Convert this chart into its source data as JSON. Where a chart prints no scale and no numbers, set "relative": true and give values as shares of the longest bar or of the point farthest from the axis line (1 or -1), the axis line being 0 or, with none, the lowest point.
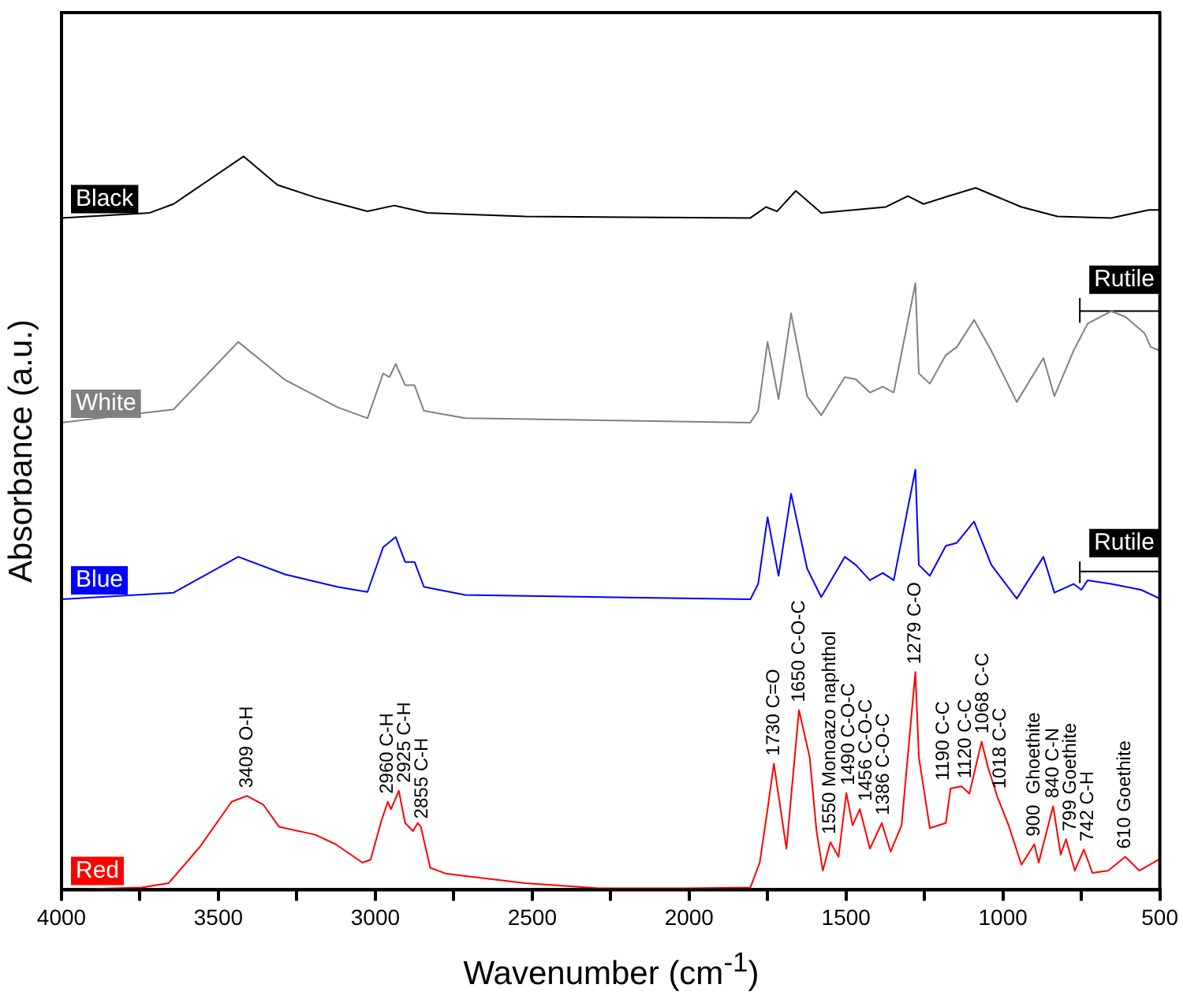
{
  "chart_data": {
    "type": "line",
    "xlabel": "Wavenumber (cm$^{-1}$)",
    "ylabel": "Absorbance (a.u.)",
    "relative": true,
    "xlim": [
      4000,
      500
    ],
    "xticks": [
      4000,
      {
        "value": 3750,
        "label": null
      },
      3500,
      {
        "value": 3250,
        "label": null
      },
      3000,
      {
        "value": 2750,
        "label": null
      },
      2500,
      {
        "value": 2250,
        "label": null
      },
      2000,
      {
        "value": 1750,
        "label": null
      },
      1500,
      {
        "value": 1250,
        "label": null
      },
      1000,
      {
        "value": 750,
        "label": null
      },
      500
    ],
    "grid": false,
    "legend": false,
    "marker": "none",
    "line_style": "solid",
    "series": [
      {
        "name": "Black",
        "color": "#000000",
        "x": [
          4000,
          3719,
          3643,
          3420,
          3312,
          3191,
          3025,
          2940,
          2835,
          2523,
          1805,
          1755,
          1720,
          1660,
          1579,
          1373,
          1303,
          1253,
          1172,
          1087,
          941,
          826,
          655,
          535,
          500
        ],
        "values": [
          0.916,
          0.923,
          0.935,
          1,
          0.961,
          0.944,
          0.925,
          0.933,
          0.923,
          0.918,
          0.916,
          0.931,
          0.925,
          0.953,
          0.923,
          0.931,
          0.946,
          0.935,
          0.946,
          0.957,
          0.931,
          0.918,
          0.916,
          0.927,
          0.927
        ]
      },
      {
        "name": "White",
        "color": "#808080",
        "x": [
          4000,
          3643,
          3437,
          3287,
          3121,
          3025,
          2975,
          2955,
          2935,
          2905,
          2875,
          2845,
          2714,
          1805,
          1780,
          1750,
          1715,
          1675,
          1624,
          1579,
          1504,
          1469,
          1424,
          1383,
          1348,
          1279,
          1268,
          1233,
          1182,
          1147,
          1092,
          1037,
          956,
          871,
          836,
          775,
          730,
          655,
          609,
          549,
          529,
          500
        ],
        "values": [
          0.637,
          0.655,
          0.747,
          0.695,
          0.658,
          0.643,
          0.704,
          0.699,
          0.717,
          0.688,
          0.688,
          0.653,
          0.643,
          0.637,
          0.653,
          0.747,
          0.669,
          0.786,
          0.673,
          0.647,
          0.699,
          0.696,
          0.678,
          0.686,
          0.678,
          0.827,
          0.704,
          0.69,
          0.729,
          0.74,
          0.777,
          0.735,
          0.665,
          0.725,
          0.673,
          0.735,
          0.772,
          0.789,
          0.781,
          0.759,
          0.74,
          0.735
        ]
      },
      {
        "name": "Blue",
        "color": "#0000ff",
        "x": [
          4000,
          3643,
          3437,
          3287,
          3121,
          3025,
          2975,
          2935,
          2905,
          2875,
          2845,
          2714,
          1805,
          1780,
          1750,
          1715,
          1675,
          1624,
          1579,
          1504,
          1469,
          1424,
          1383,
          1348,
          1279,
          1268,
          1233,
          1182,
          1147,
          1092,
          1037,
          956,
          871,
          836,
          775,
          750,
          730,
          655,
          560,
          500
        ],
        "values": [
          0.396,
          0.405,
          0.454,
          0.43,
          0.413,
          0.406,
          0.467,
          0.481,
          0.447,
          0.447,
          0.413,
          0.402,
          0.396,
          0.417,
          0.508,
          0.428,
          0.54,
          0.438,
          0.399,
          0.454,
          0.443,
          0.422,
          0.432,
          0.422,
          0.573,
          0.443,
          0.428,
          0.469,
          0.473,
          0.502,
          0.443,
          0.397,
          0.454,
          0.405,
          0.417,
          0.409,
          0.422,
          0.417,
          0.409,
          0.397
        ]
      },
      {
        "name": "Red",
        "color": "#ff0000",
        "x": [
          4000,
          3744,
          3659,
          3558,
          3458,
          3409,
          3357,
          3307,
          3191,
          3126,
          3041,
          3015,
          2980,
          2960,
          2950,
          2925,
          2905,
          2880,
          2865,
          2855,
          2825,
          2775,
          2523,
          2287,
          2000,
          1805,
          1775,
          1750,
          1730,
          1690,
          1650,
          1616,
          1594,
          1574,
          1550,
          1524,
          1499,
          1479,
          1456,
          1424,
          1386,
          1358,
          1323,
          1279,
          1268,
          1233,
          1182,
          1167,
          1132,
          1107,
          1068,
          1047,
          1018,
          982,
          941,
          900,
          886,
          840,
          816,
          799,
          771,
          742,
          715,
          665,
          610,
          565,
          505,
          500
        ],
        "values": [
          0,
          0.003,
          0.009,
          0.059,
          0.12,
          0.128,
          0.116,
          0.086,
          0.075,
          0.062,
          0.037,
          0.041,
          0.095,
          0.12,
          0.11,
          0.135,
          0.091,
          0.08,
          0.091,
          0.086,
          0.03,
          0.022,
          0.009,
          0.002,
          0.002,
          0.003,
          0.037,
          0.11,
          0.172,
          0.056,
          0.245,
          0.181,
          0.08,
          0.026,
          0.065,
          0.045,
          0.132,
          0.088,
          0.11,
          0.056,
          0.091,
          0.052,
          0.088,
          0.297,
          0.181,
          0.084,
          0.091,
          0.138,
          0.141,
          0.131,
          0.202,
          0.166,
          0.127,
          0.088,
          0.034,
          0.062,
          0.037,
          0.114,
          0.048,
          0.069,
          0.026,
          0.055,
          0.023,
          0.026,
          0.045,
          0.026,
          0.041,
          0.043
        ]
      },
      {
        "name": "Rutile",
        "color": "#000000",
        "x": [
          755,
          755,
          755,
          500
        ],
        "values": [
          0.806,
          0.774,
          0.789,
          0.789
        ]
      },
      {
        "name": "Rutile",
        "color": "#000000",
        "x": [
          755,
          755,
          755,
          500
        ],
        "values": [
          0.447,
          0.419,
          0.434,
          0.434
        ]
      }
    ],
    "annotations": [
      {
        "text": "3409 O-H",
        "x": 3409,
        "y": 0.128
      },
      {
        "text": "2960 C-H",
        "x": 2960,
        "y": 0.12
      },
      {
        "text": "2925 C-H",
        "x": 2925,
        "y": 0.135
      },
      {
        "text": "2855 C-H",
        "x": 2855,
        "y": 0.086
      },
      {
        "text": "1730 C=O",
        "x": 1730,
        "y": 0.172
      },
      {
        "text": "1650 C-O-C",
        "x": 1650,
        "y": 0.245
      },
      {
        "text": "1550 Monoazo naphthol",
        "x": 1550,
        "y": 0.065
      },
      {
        "text": "1490 C-O-C",
        "x": 1490,
        "y": 0.132
      },
      {
        "text": "1456 C-O-C",
        "x": 1456,
        "y": 0.11
      },
      {
        "text": "1386 C-O-C",
        "x": 1386,
        "y": 0.091
      },
      {
        "text": "1279 C-O",
        "x": 1279,
        "y": 0.297
      },
      {
        "text": "1190 C-C",
        "x": 1190,
        "y": 0.138
      },
      {
        "text": "1120 C-C",
        "x": 1120,
        "y": 0.141
      },
      {
        "text": "1068 C-C",
        "x": 1068,
        "y": 0.202
      },
      {
        "text": "1018 C-C",
        "x": 1018,
        "y": 0.127
      },
      {
        "text": "900  Ghoethite",
        "x": 900,
        "y": 0.062
      },
      {
        "text": "840 C-N",
        "x": 840,
        "y": 0.114
      },
      {
        "text": "799 Goethite",
        "x": 799,
        "y": 0.069
      },
      {
        "text": "742 C-H",
        "x": 742,
        "y": 0.055
      },
      {
        "text": "610 Goethite",
        "x": 610,
        "y": 0.045
      }
    ]
  }
}
